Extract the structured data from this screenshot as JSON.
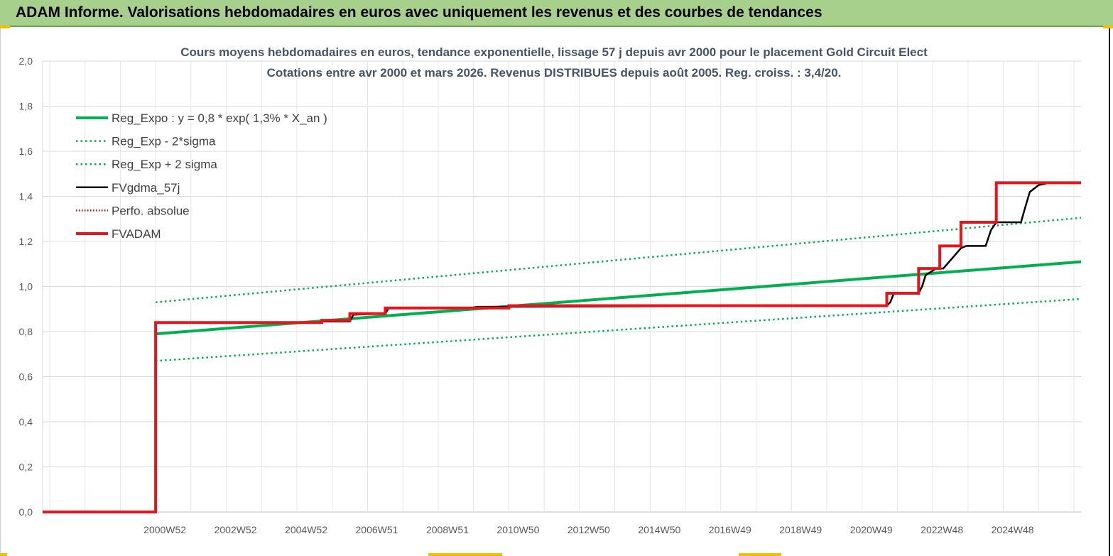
{
  "header": {
    "title": "ADAM Informe. Valorisations hebdomadaires en euros avec uniquement les revenus et des courbes de tendances"
  },
  "chart_data": {
    "type": "line",
    "title": "Cours moyens hebdomadaires en euros, tendance exponentielle, lissage 57 j depuis avr 2000 pour le placement Gold Circuit Elect",
    "subtitle": "Cotations entre avr 2000 et mars 2026. Revenus DISTRIBUES depuis août 2005. Reg. croiss. : 3,4/20.",
    "xlabel": "",
    "ylabel": "",
    "ylim": [
      0,
      2.0
    ],
    "y_ticks": [
      "0,0",
      "0,2",
      "0,4",
      "0,6",
      "0,8",
      "1,0",
      "1,2",
      "1,4",
      "1,6",
      "1,8",
      "2,0"
    ],
    "x_ticks": [
      "2000W52",
      "2002W52",
      "2004W52",
      "2006W51",
      "2008W51",
      "2010W50",
      "2012W50",
      "2014W50",
      "2016W49",
      "2018W49",
      "2020W49",
      "2022W48",
      "2024W48"
    ],
    "x_tick_years": [
      2000.0,
      2002.0,
      2004.0,
      2006.0,
      2008.0,
      2010.0,
      2012.0,
      2014.0,
      2016.0,
      2018.0,
      2020.0,
      2022.0,
      2024.0
    ],
    "xlim": [
      1996.8,
      2026.2
    ],
    "grid": true,
    "legend_position": "top-left",
    "series": [
      {
        "name": "Reg_Expo : y = 0,8 * exp( 1,3% *  X_an )",
        "color": "#00b050",
        "style": "solid-thick",
        "x": [
          2000.0,
          2026.2
        ],
        "y": [
          0.79,
          1.11
        ]
      },
      {
        "name": "Reg_Exp - 2*sigma",
        "color": "#00b050",
        "style": "dotted",
        "x": [
          2000.0,
          2026.2
        ],
        "y": [
          0.67,
          0.945
        ]
      },
      {
        "name": "Reg_Exp + 2 sigma",
        "color": "#00b050",
        "style": "dotted",
        "x": [
          2000.0,
          2026.2
        ],
        "y": [
          0.93,
          1.305
        ]
      },
      {
        "name": "FVgdma_57j",
        "color": "#000000",
        "style": "solid",
        "x": [
          1996.8,
          2000.0,
          2000.0,
          2004.6,
          2004.7,
          2005.5,
          2005.6,
          2006.5,
          2006.6,
          2008.9,
          2009.1,
          2020.7,
          2020.8,
          2020.9,
          2021.6,
          2021.7,
          2021.8,
          2022.1,
          2022.3,
          2022.8,
          2022.95,
          2023.5,
          2023.65,
          2023.8,
          2024.5,
          2024.6,
          2024.75,
          2025.0,
          2025.3,
          2025.6,
          2026.2
        ],
        "y": [
          0.0,
          0.0,
          0.84,
          0.84,
          0.845,
          0.845,
          0.875,
          0.88,
          0.905,
          0.905,
          0.91,
          0.915,
          0.93,
          0.97,
          0.97,
          1.0,
          1.05,
          1.08,
          1.08,
          1.17,
          1.18,
          1.18,
          1.25,
          1.285,
          1.285,
          1.34,
          1.42,
          1.45,
          1.46,
          1.46,
          1.46
        ]
      },
      {
        "name": "Perfo. absolue",
        "color": "#c00000",
        "style": "dotted",
        "x": [],
        "y": []
      },
      {
        "name": "FVADAM",
        "color": "#e8141b",
        "style": "solid-thick",
        "x": [
          1996.8,
          2000.0,
          2000.0,
          2004.7,
          2004.7,
          2005.5,
          2005.5,
          2006.5,
          2006.5,
          2010.0,
          2010.0,
          2020.7,
          2020.7,
          2021.6,
          2021.6,
          2022.2,
          2022.2,
          2022.8,
          2022.8,
          2023.8,
          2023.8,
          2024.6,
          2024.6,
          2026.2
        ],
        "y": [
          0.0,
          0.0,
          0.84,
          0.84,
          0.85,
          0.85,
          0.88,
          0.88,
          0.905,
          0.905,
          0.915,
          0.915,
          0.97,
          0.97,
          1.08,
          1.08,
          1.18,
          1.18,
          1.285,
          1.285,
          1.46,
          1.46,
          1.46,
          1.46
        ]
      }
    ]
  }
}
